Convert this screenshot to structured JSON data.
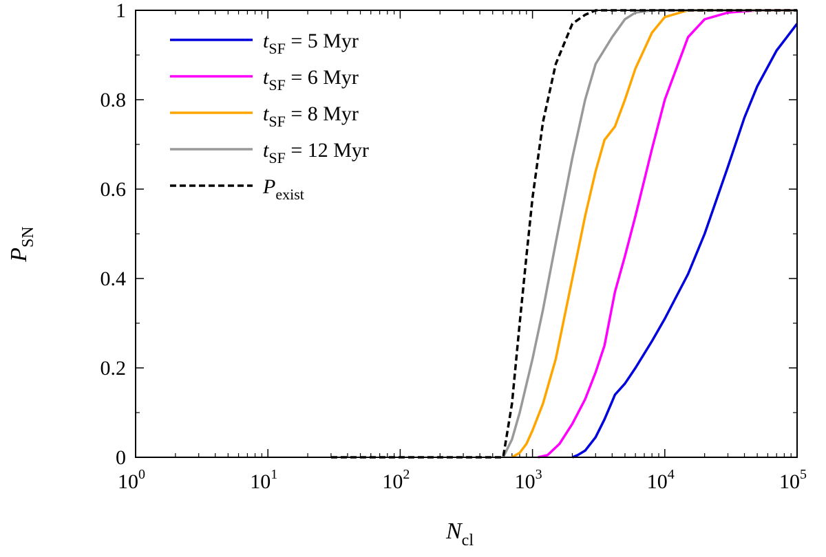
{
  "chart_data": {
    "type": "line",
    "title": "",
    "xlabel": {
      "main": "N",
      "sub": "cl"
    },
    "ylabel": {
      "main": "P",
      "sub": "SN"
    },
    "xscale": "log10",
    "xlim": [
      1,
      100000
    ],
    "ylim": [
      0,
      1
    ],
    "x_ticks": [
      {
        "value": 1,
        "base": "10",
        "exp": "0"
      },
      {
        "value": 10,
        "base": "10",
        "exp": "1"
      },
      {
        "value": 100,
        "base": "10",
        "exp": "2"
      },
      {
        "value": 1000,
        "base": "10",
        "exp": "3"
      },
      {
        "value": 10000,
        "base": "10",
        "exp": "4"
      },
      {
        "value": 100000,
        "base": "10",
        "exp": "5"
      }
    ],
    "y_ticks": [
      {
        "value": 0,
        "label": "0"
      },
      {
        "value": 0.2,
        "label": "0.2"
      },
      {
        "value": 0.4,
        "label": "0.4"
      },
      {
        "value": 0.6,
        "label": "0.6"
      },
      {
        "value": 0.8,
        "label": "0.8"
      },
      {
        "value": 1,
        "label": "1"
      }
    ],
    "grid": false,
    "legend_position": "top-left",
    "series": [
      {
        "name": "t_SF = 5 Myr",
        "legend": {
          "var": "t",
          "sub": "SF",
          "rest": " = 5 Myr"
        },
        "color": "#0000dd",
        "dash": "solid",
        "x": [
          2000,
          2200,
          2500,
          3000,
          3500,
          4000,
          4200,
          5000,
          6000,
          8000,
          10000,
          15000,
          20000,
          30000,
          40000,
          50000,
          70000,
          100000
        ],
        "y": [
          0.0,
          0.005,
          0.015,
          0.045,
          0.085,
          0.125,
          0.14,
          0.165,
          0.2,
          0.26,
          0.31,
          0.41,
          0.5,
          0.65,
          0.76,
          0.83,
          0.91,
          0.97
        ]
      },
      {
        "name": "t_SF = 6 Myr",
        "legend": {
          "var": "t",
          "sub": "SF",
          "rest": " = 6 Myr"
        },
        "color": "#ff00ff",
        "dash": "solid",
        "x": [
          1100,
          1300,
          1600,
          2000,
          2500,
          3000,
          3500,
          4200,
          5000,
          6000,
          8000,
          10000,
          15000,
          20000,
          30000,
          50000,
          70000,
          100000
        ],
        "y": [
          0.0,
          0.005,
          0.03,
          0.075,
          0.13,
          0.19,
          0.25,
          0.37,
          0.45,
          0.54,
          0.69,
          0.8,
          0.94,
          0.98,
          0.995,
          1.0,
          1.0,
          1.0
        ]
      },
      {
        "name": "t_SF = 8 Myr",
        "legend": {
          "var": "t",
          "sub": "SF",
          "rest": " = 8 Myr"
        },
        "color": "#ffa500",
        "dash": "solid",
        "x": [
          700,
          800,
          900,
          1000,
          1200,
          1500,
          2000,
          2500,
          3000,
          3500,
          4200,
          5000,
          6000,
          8000,
          10000,
          15000,
          20000,
          100000
        ],
        "y": [
          0.0,
          0.01,
          0.03,
          0.06,
          0.12,
          0.22,
          0.4,
          0.54,
          0.64,
          0.71,
          0.74,
          0.8,
          0.87,
          0.95,
          0.985,
          1.0,
          1.0,
          1.0
        ]
      },
      {
        "name": "t_SF = 12 Myr",
        "legend": {
          "var": "t",
          "sub": "SF",
          "rest": " = 12 Myr"
        },
        "color": "#999999",
        "dash": "solid",
        "x": [
          600,
          700,
          800,
          1000,
          1200,
          1500,
          2000,
          2500,
          3000,
          4000,
          5000,
          6000,
          8000,
          10000,
          100000
        ],
        "y": [
          0.0,
          0.04,
          0.1,
          0.22,
          0.33,
          0.48,
          0.67,
          0.8,
          0.88,
          0.94,
          0.98,
          0.995,
          1.0,
          1.0,
          1.0
        ]
      },
      {
        "name": "P_exist",
        "legend": {
          "var": "P",
          "sub": "exist",
          "rest": ""
        },
        "color": "#000000",
        "dash": "dashed",
        "x": [
          30,
          100,
          300,
          550,
          600,
          700,
          800,
          900,
          1000,
          1200,
          1500,
          2000,
          2500,
          3000,
          4000,
          100000
        ],
        "y": [
          0.0,
          0.0,
          0.0,
          0.0,
          0.0,
          0.12,
          0.3,
          0.45,
          0.58,
          0.75,
          0.88,
          0.97,
          0.99,
          1.0,
          1.0,
          1.0
        ]
      }
    ]
  }
}
